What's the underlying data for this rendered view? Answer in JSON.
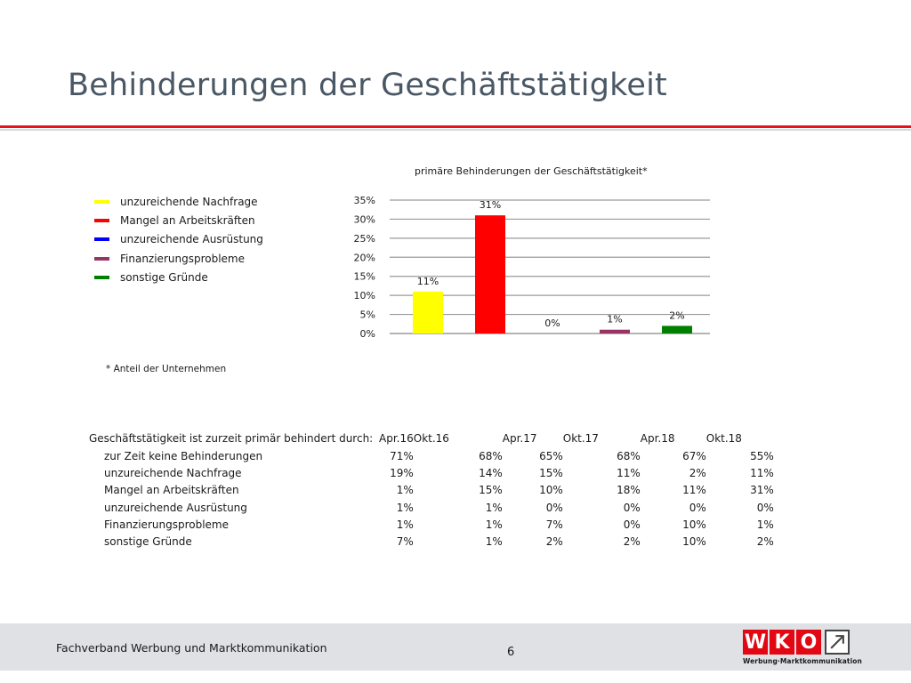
{
  "slide": {
    "title": "Behinderungen der Geschäftstätigkeit"
  },
  "legend": {
    "items": [
      {
        "label": "unzureichende Nachfrage",
        "color": "#ffff00"
      },
      {
        "label": "Mangel an Arbeitskräften",
        "color": "#ff0000"
      },
      {
        "label": "unzureichende Ausrüstung",
        "color": "#0000ff"
      },
      {
        "label": "Finanzierungsprobleme",
        "color": "#993366"
      },
      {
        "label": "sonstige Gründe",
        "color": "#008000"
      }
    ]
  },
  "chart_data": {
    "type": "bar",
    "title": "primäre Behinderungen der Geschäftstätigkeit*",
    "categories": [
      "unzureichende Nachfrage",
      "Mangel an Arbeitskräften",
      "unzureichende Ausrüstung",
      "Finanzierungsprobleme",
      "sonstige Gründe"
    ],
    "values": [
      11,
      31,
      0,
      1,
      2
    ],
    "data_labels": [
      "11%",
      "31%",
      "0%",
      "1%",
      "2%"
    ],
    "colors": [
      "#ffff00",
      "#ff0000",
      "#0000ff",
      "#993366",
      "#008000"
    ],
    "ylim": [
      0,
      35
    ],
    "yticks": [
      0,
      5,
      10,
      15,
      20,
      25,
      30,
      35
    ],
    "ytick_labels": [
      "0%",
      "5%",
      "10%",
      "15%",
      "20%",
      "25%",
      "30%",
      "35%"
    ],
    "grid": true,
    "xlabel": "",
    "ylabel": ""
  },
  "footnote": "* Anteil der Unternehmen",
  "table": {
    "caption": "Geschäftstätigkeit ist zurzeit primär behindert durch:",
    "columns": [
      "Apr.16",
      "Okt.16",
      "Apr.17",
      "Okt.17",
      "Apr.18",
      "Okt.18"
    ],
    "rows": [
      {
        "label": "zur Zeit keine Behinderungen",
        "values": [
          "71%",
          "68%",
          "65%",
          "68%",
          "67%",
          "55%"
        ]
      },
      {
        "label": "unzureichende Nachfrage",
        "values": [
          "19%",
          "14%",
          "15%",
          "11%",
          "2%",
          "11%"
        ]
      },
      {
        "label": "Mangel an Arbeitskräften",
        "values": [
          "1%",
          "15%",
          "10%",
          "18%",
          "11%",
          "31%"
        ]
      },
      {
        "label": "unzureichende Ausrüstung",
        "values": [
          "1%",
          "1%",
          "0%",
          "0%",
          "0%",
          "0%"
        ]
      },
      {
        "label": "Finanzierungsprobleme",
        "values": [
          "1%",
          "1%",
          "7%",
          "0%",
          "10%",
          "1%"
        ]
      },
      {
        "label": "sonstige Gründe",
        "values": [
          "7%",
          "1%",
          "2%",
          "2%",
          "10%",
          "2%"
        ]
      }
    ]
  },
  "footer": {
    "organization": "Fachverband Werbung und Marktkommunikation",
    "page_number": "6",
    "logo_letters": [
      "W",
      "K",
      "O"
    ],
    "logo_subtitle": "Werbung·Marktkommunikation",
    "logo_color": "#e30613"
  }
}
